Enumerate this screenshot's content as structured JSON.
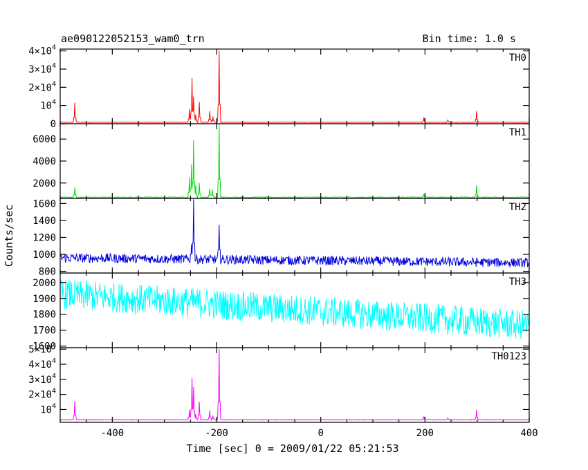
{
  "header": {
    "obs_id": "ae090122052153_wam0_trn",
    "bin_time": "Bin time: 1.0 s"
  },
  "axes": {
    "xlabel": "Time [sec] 0 = 2009/01/22 05:21:53",
    "ylabel": "Counts/sec"
  },
  "chart_data": {
    "type": "line",
    "x_range": [
      -500,
      400
    ],
    "x_ticks": [
      -400,
      -200,
      0,
      200,
      400
    ],
    "panels": [
      {
        "name": "TH0",
        "color": "#ff0000",
        "ylim": [
          0,
          41000
        ],
        "y_ticks": [
          0,
          10000,
          20000,
          30000,
          40000
        ],
        "y_tick_labels": [
          {
            "m": "0"
          },
          {
            "m": "10",
            "e": "4"
          },
          {
            "m": "2×10",
            "e": "4"
          },
          {
            "m": "3×10",
            "e": "4"
          },
          {
            "m": "4×10",
            "e": "4"
          }
        ],
        "baseline": 800,
        "noise": 200,
        "trend": 0,
        "spikes": [
          [
            -472,
            11500
          ],
          [
            -252,
            8000
          ],
          [
            -247,
            25000
          ],
          [
            -244,
            15000
          ],
          [
            -240,
            5000
          ],
          [
            -233,
            12000
          ],
          [
            -213,
            7000
          ],
          [
            -207,
            4000
          ],
          [
            -195,
            40000
          ],
          [
            198,
            3500
          ],
          [
            244,
            2000
          ],
          [
            299,
            7000
          ]
        ]
      },
      {
        "name": "TH1",
        "color": "#00dd00",
        "ylim": [
          600,
          7400
        ],
        "y_ticks": [
          2000,
          4000,
          6000
        ],
        "y_tick_labels": [
          {
            "m": "2000"
          },
          {
            "m": "4000"
          },
          {
            "m": "6000"
          }
        ],
        "baseline": 700,
        "noise": 80,
        "trend": 0,
        "spikes": [
          [
            -472,
            1600
          ],
          [
            -252,
            2500
          ],
          [
            -248,
            3700
          ],
          [
            -244,
            5900
          ],
          [
            -240,
            1800
          ],
          [
            -233,
            2000
          ],
          [
            -213,
            1500
          ],
          [
            -208,
            1400
          ],
          [
            -195,
            7300
          ],
          [
            198,
            1000
          ],
          [
            299,
            1800
          ]
        ]
      },
      {
        "name": "TH2",
        "color": "#0000dd",
        "ylim": [
          780,
          1660
        ],
        "y_ticks": [
          800,
          1000,
          1200,
          1400,
          1600
        ],
        "y_tick_labels": [
          {
            "m": "800"
          },
          {
            "m": "1000"
          },
          {
            "m": "1200"
          },
          {
            "m": "1400"
          },
          {
            "m": "1600"
          }
        ],
        "baseline": 960,
        "noise": 110,
        "trend": -60,
        "spikes": [
          [
            -248,
            1120
          ],
          [
            -244,
            1650
          ],
          [
            -195,
            1350
          ]
        ]
      },
      {
        "name": "TH3",
        "color": "#00ffff",
        "ylim": [
          1590,
          2060
        ],
        "y_ticks": [
          1600,
          1700,
          1800,
          1900,
          2000
        ],
        "y_tick_labels": [
          {
            "m": "1600"
          },
          {
            "m": "1700"
          },
          {
            "m": "1800"
          },
          {
            "m": "1900"
          },
          {
            "m": "2000"
          }
        ],
        "baseline": 1930,
        "noise": 190,
        "trend": -200,
        "spikes": []
      },
      {
        "name": "TH0123",
        "color": "#ff00ff",
        "ylim": [
          1500,
          51000
        ],
        "y_ticks": [
          10000,
          20000,
          30000,
          40000,
          50000
        ],
        "y_tick_labels": [
          {
            "m": "10",
            "e": "4"
          },
          {
            "m": "2×10",
            "e": "4"
          },
          {
            "m": "3×10",
            "e": "4"
          },
          {
            "m": "4×10",
            "e": "4"
          },
          {
            "m": "5×10",
            "e": "4"
          }
        ],
        "baseline": 3200,
        "noise": 400,
        "trend": 0,
        "spikes": [
          [
            -472,
            15500
          ],
          [
            -252,
            10000
          ],
          [
            -247,
            31000
          ],
          [
            -244,
            25000
          ],
          [
            -240,
            7000
          ],
          [
            -233,
            15000
          ],
          [
            -213,
            9500
          ],
          [
            -207,
            6000
          ],
          [
            -195,
            50000
          ],
          [
            198,
            5500
          ],
          [
            244,
            4500
          ],
          [
            299,
            10000
          ]
        ]
      }
    ]
  }
}
